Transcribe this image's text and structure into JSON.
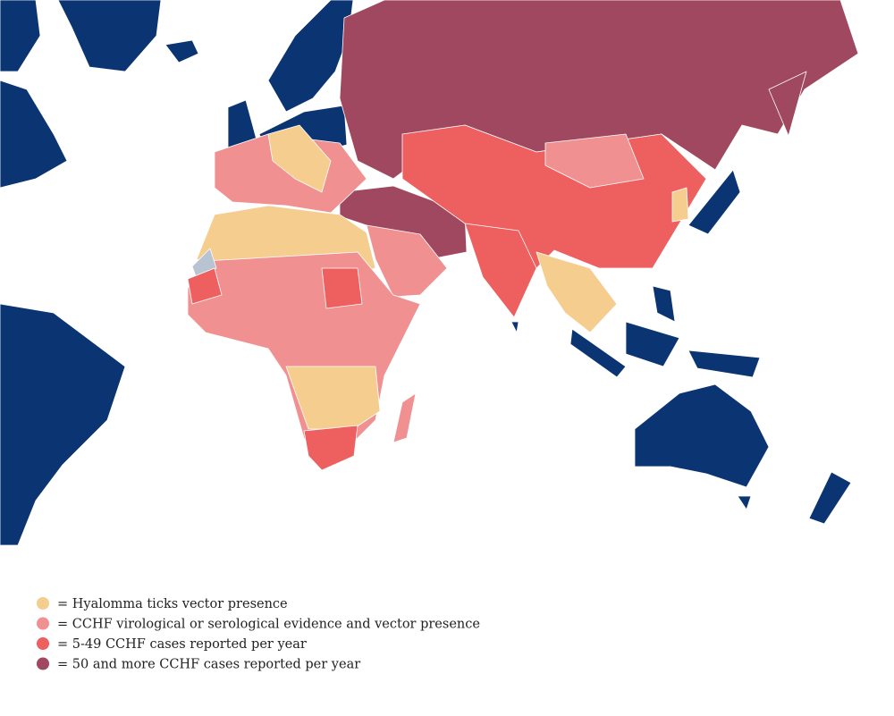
{
  "legend": {
    "items": [
      {
        "label": "= Hyalomma ticks vector presence",
        "color": "#f5cd8e"
      },
      {
        "label": "= CCHF virological or serological evidence and vector presence",
        "color": "#f09090"
      },
      {
        "label": "= 5-49 CCHF cases reported per year",
        "color": "#ee6060"
      },
      {
        "label": "= 50 and more CCHF cases reported per year",
        "color": "#a0485f"
      }
    ]
  }
}
